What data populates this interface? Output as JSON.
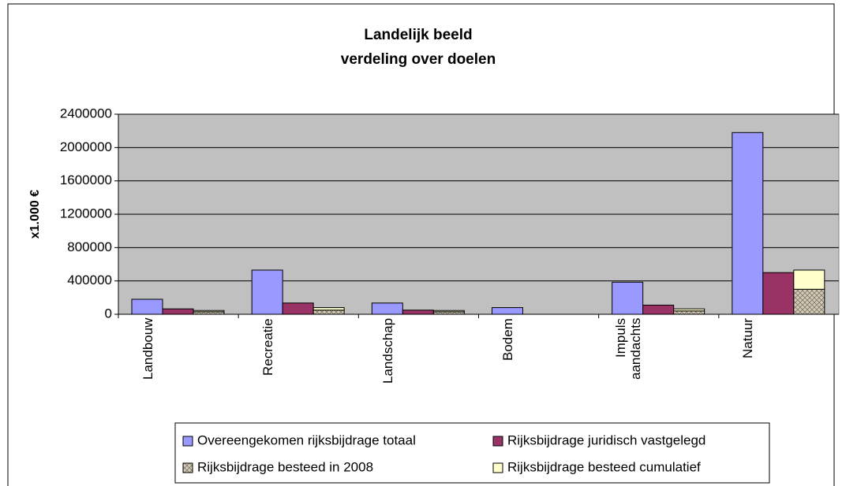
{
  "chart_data": {
    "type": "bar",
    "title": "Landelijk beeld",
    "subtitle": "verdeling over doelen",
    "y_label": "x1.000 €",
    "categories": [
      "Landbouw",
      "Recreatie",
      "Landschap",
      "Bodem",
      "Impuls aandachts",
      "Natuur"
    ],
    "series": [
      {
        "name": "Overeengekomen rijksbijdrage totaal",
        "color": "#9999ff",
        "values": [
          180000,
          530000,
          135000,
          80000,
          385000,
          2180000
        ]
      },
      {
        "name": "Rijksbijdrage juridisch vastgelegd",
        "color": "#993366",
        "values": [
          65000,
          135000,
          50000,
          0,
          110000,
          500000
        ]
      },
      {
        "name": "Rijksbijdrage besteed in 2008",
        "color": "#d8ccb0",
        "hatch": true,
        "stack": true,
        "values": [
          30000,
          50000,
          30000,
          0,
          40000,
          300000
        ]
      },
      {
        "name": "Rijksbijdrage besteed cumulatief",
        "color": "#ffffcc",
        "stack": true,
        "values": [
          15000,
          30000,
          15000,
          0,
          25000,
          230000
        ]
      }
    ],
    "ylim": [
      0,
      2400000
    ],
    "yticks": [
      0,
      400000,
      800000,
      1200000,
      1600000,
      2000000,
      2400000
    ],
    "grid": true,
    "plot_background": "#c0c0c0",
    "legend": "bottom"
  }
}
